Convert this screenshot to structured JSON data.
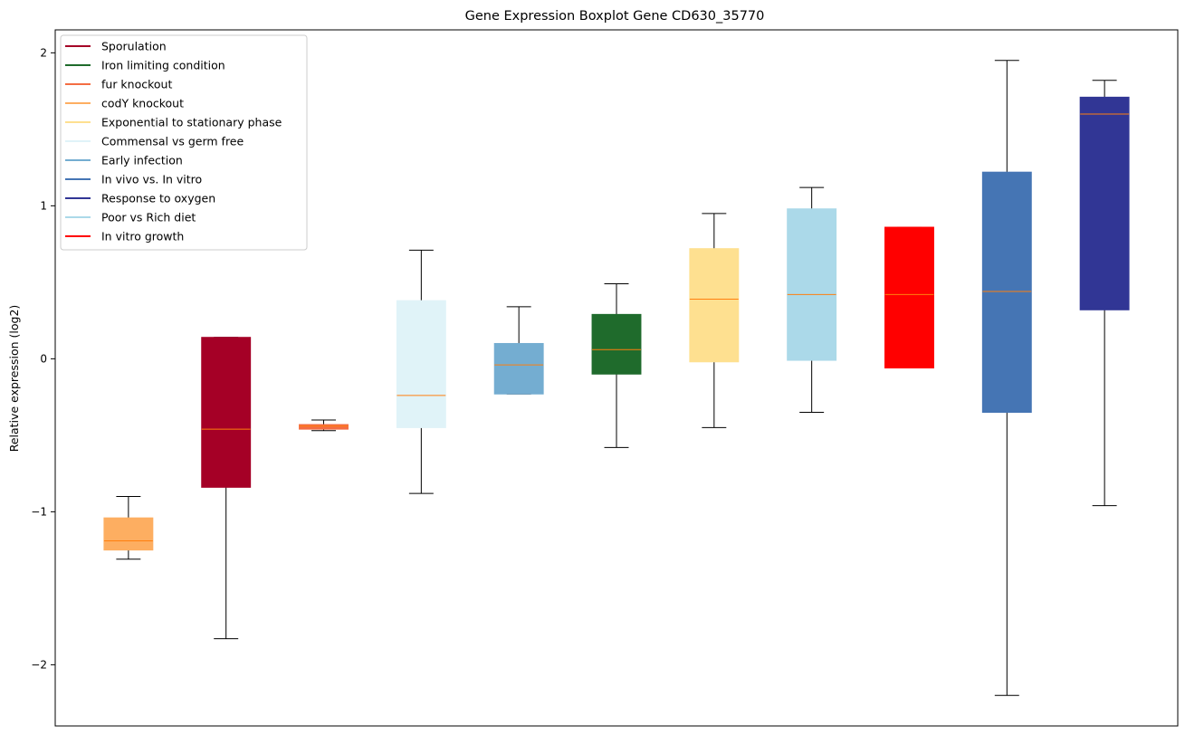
{
  "chart_data": {
    "type": "boxplot",
    "title": "Gene Expression Boxplot Gene CD630_35770",
    "xlabel": "",
    "ylabel": "Relative expression (log2)",
    "ylim": [
      -2.4,
      2.15
    ],
    "yticks": [
      -2,
      -1,
      0,
      1,
      2
    ],
    "yticklabels": [
      "−2",
      "−1",
      "0",
      "1",
      "2"
    ],
    "median_color": "#ff7f0e",
    "legend_position": "upper-left",
    "legend": [
      {
        "label": "Sporulation",
        "color": "#a50026"
      },
      {
        "label": "Iron limiting condition",
        "color": "#1f6b2c"
      },
      {
        "label": "fur knockout",
        "color": "#f46d43"
      },
      {
        "label": "codY knockout",
        "color": "#fdae61"
      },
      {
        "label": "Exponential to stationary phase",
        "color": "#fee090"
      },
      {
        "label": "Commensal vs germ free",
        "color": "#e0f3f8"
      },
      {
        "label": "Early infection",
        "color": "#74add1"
      },
      {
        "label": "In vivo vs. In vitro",
        "color": "#4575b4"
      },
      {
        "label": "Response to oxygen",
        "color": "#313695"
      },
      {
        "label": "Poor vs Rich diet",
        "color": "#abd9e9"
      },
      {
        "label": "In vitro growth",
        "color": "#ff0000"
      }
    ],
    "boxes": [
      {
        "group": "codY knockout",
        "color": "#fdae61",
        "whisker_low": -1.31,
        "q1": -1.25,
        "median": -1.19,
        "q3": -1.04,
        "whisker_high": -0.9
      },
      {
        "group": "Sporulation",
        "color": "#a50026",
        "whisker_low": -1.83,
        "q1": -0.84,
        "median": -0.46,
        "q3": 0.14,
        "whisker_high": 0.14
      },
      {
        "group": "fur knockout",
        "color": "#f46d43",
        "whisker_low": -0.47,
        "q1": -0.46,
        "median": -0.44,
        "q3": -0.43,
        "whisker_high": -0.4
      },
      {
        "group": "Commensal vs germ free",
        "color": "#e0f3f8",
        "whisker_low": -0.88,
        "q1": -0.45,
        "median": -0.24,
        "q3": 0.38,
        "whisker_high": 0.71
      },
      {
        "group": "Early infection",
        "color": "#74add1",
        "whisker_low": -0.23,
        "q1": -0.23,
        "median": -0.04,
        "q3": 0.1,
        "whisker_high": 0.34
      },
      {
        "group": "Iron limiting condition",
        "color": "#1f6b2c",
        "whisker_low": -0.58,
        "q1": -0.1,
        "median": 0.06,
        "q3": 0.29,
        "whisker_high": 0.49
      },
      {
        "group": "Exponential to stationary phase",
        "color": "#fee090",
        "whisker_low": -0.45,
        "q1": -0.02,
        "median": 0.39,
        "q3": 0.72,
        "whisker_high": 0.95
      },
      {
        "group": "Poor vs Rich diet",
        "color": "#abd9e9",
        "whisker_low": -0.35,
        "q1": -0.01,
        "median": 0.42,
        "q3": 0.98,
        "whisker_high": 1.12
      },
      {
        "group": "In vitro growth",
        "color": "#ff0000",
        "whisker_low": -0.06,
        "q1": -0.06,
        "median": 0.42,
        "q3": 0.86,
        "whisker_high": 0.86
      },
      {
        "group": "In vivo vs. In vitro",
        "color": "#4575b4",
        "whisker_low": -2.2,
        "q1": -0.35,
        "median": 0.44,
        "q3": 1.22,
        "whisker_high": 1.95
      },
      {
        "group": "Response to oxygen",
        "color": "#313695",
        "whisker_low": -0.96,
        "q1": 0.32,
        "median": 1.6,
        "q3": 1.71,
        "whisker_high": 1.82
      }
    ]
  }
}
